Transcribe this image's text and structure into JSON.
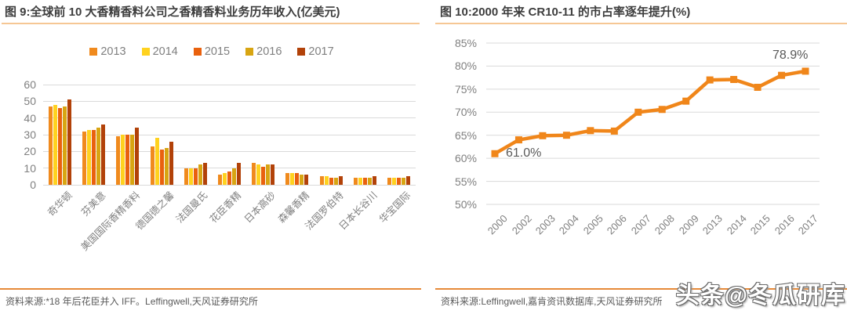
{
  "panels": {
    "left": {
      "source": "资料来源:*18 年后花臣并入 IFF。Leffingwell,天风证券研究所"
    },
    "right": {
      "source": "资料来源:Leffingwell,嘉肯资讯数据库,天风证券研究所"
    }
  },
  "watermark": "头条@冬瓜研库",
  "colors": {
    "title_text": "#3d3d3d",
    "axis_text": "#808080",
    "grid": "#dadada",
    "title_rule": "#f6c794",
    "source_rule": "#e68a39",
    "source_text": "#5a5a5a",
    "line_series": "#f0861a"
  },
  "chart_data": [
    {
      "type": "bar",
      "title": "图 9:全球前 10 大香精香料公司之香精香料业务历年收入(亿美元)",
      "categories": [
        "奇华顿",
        "芬美意",
        "美国国际香精香料",
        "德国德之馨",
        "法国曼氏",
        "花臣香精",
        "日本高砂",
        "森馨香精",
        "法国罗伯特",
        "日本长谷川",
        "华宝国际"
      ],
      "series": [
        {
          "name": "2013",
          "color": "#f08a1d",
          "values": [
            47,
            32,
            29,
            23,
            10,
            6,
            13,
            7,
            5,
            4,
            4
          ]
        },
        {
          "name": "2014",
          "color": "#ffd21f",
          "values": [
            48,
            33,
            30,
            28,
            10,
            7,
            12,
            7,
            5,
            4,
            4
          ]
        },
        {
          "name": "2015",
          "color": "#e9610e",
          "values": [
            46,
            33,
            30,
            21,
            10,
            8,
            11,
            7,
            4,
            4,
            4
          ]
        },
        {
          "name": "2016",
          "color": "#d8a512",
          "values": [
            47,
            34,
            30,
            22,
            12,
            10,
            12,
            6,
            4,
            4,
            4
          ]
        },
        {
          "name": "2017",
          "color": "#b24209",
          "values": [
            51,
            36,
            34,
            26,
            13,
            13,
            12,
            6,
            5,
            5,
            5
          ]
        }
      ],
      "ylim": [
        0,
        60
      ],
      "yticks": [
        0,
        10,
        20,
        30,
        40,
        50,
        60
      ],
      "grid": true,
      "legend_position": "top"
    },
    {
      "type": "line",
      "title": "图 10:2000 年来 CR10-11 的市占率逐年提升(%)",
      "x": [
        "2000",
        "2002",
        "2003",
        "2004",
        "2005",
        "2006",
        "2007",
        "2008",
        "2009",
        "2013",
        "2014",
        "2015",
        "2016",
        "2017"
      ],
      "values": [
        61.0,
        64.0,
        64.9,
        65.0,
        66.0,
        65.9,
        70.0,
        70.6,
        72.4,
        77.0,
        77.1,
        75.4,
        78.0,
        78.9
      ],
      "ylim": [
        50,
        85
      ],
      "yticks": [
        50,
        55,
        60,
        65,
        70,
        75,
        80,
        85
      ],
      "ytick_suffix": "%",
      "grid": true,
      "marker": "square",
      "annotations": [
        {
          "text": "61.0%",
          "point_index": 0,
          "placement": "right"
        },
        {
          "text": "78.9%",
          "point_index": 13,
          "placement": "above"
        }
      ]
    }
  ]
}
